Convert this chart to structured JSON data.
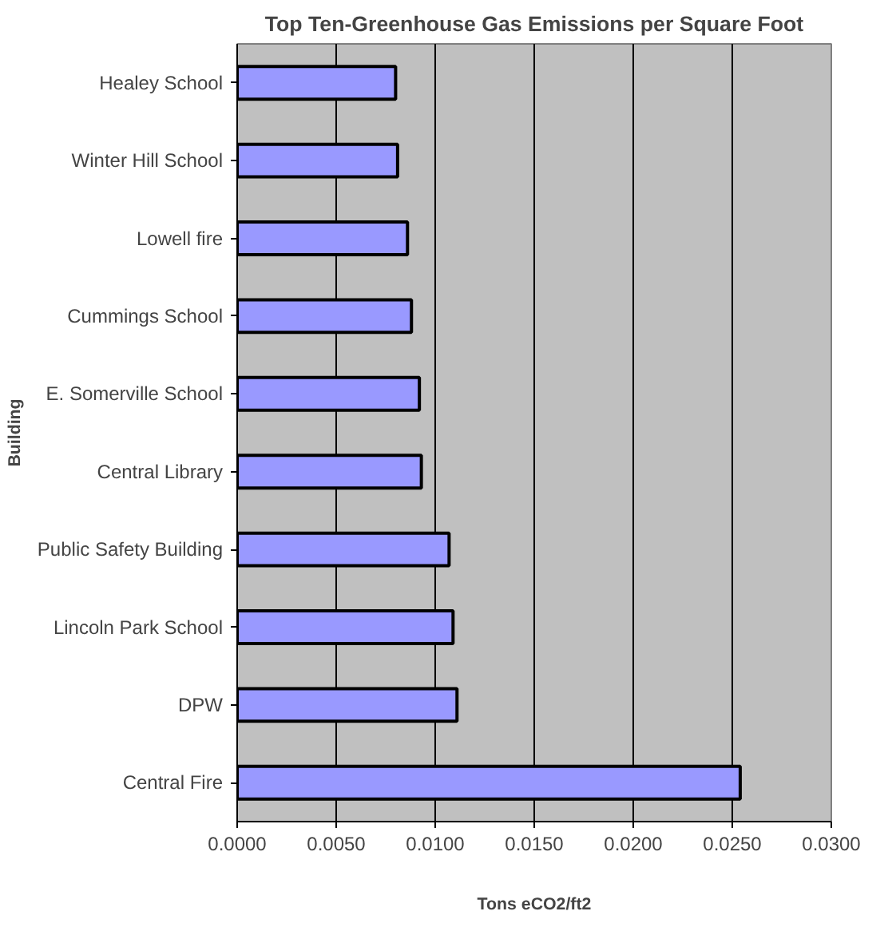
{
  "chart_data": {
    "type": "bar",
    "orientation": "horizontal",
    "title": "Top Ten-Greenhouse Gas Emissions per Square Foot",
    "xlabel": "Tons eCO2/ft2",
    "ylabel": "Building",
    "categories": [
      "Healey School",
      "Winter Hill School",
      "Lowell fire",
      "Cummings School",
      "E. Somerville School",
      "Central Library",
      "Public Safety Building",
      "Lincoln Park School",
      "DPW",
      "Central Fire"
    ],
    "values": [
      0.008,
      0.0081,
      0.0086,
      0.0088,
      0.0092,
      0.0093,
      0.0107,
      0.0109,
      0.0111,
      0.0254
    ],
    "color": "#9999ff",
    "xlim": [
      0,
      0.03
    ],
    "xticks": [
      {
        "value": 0,
        "label": "0.0000"
      },
      {
        "value": 0.005,
        "label": "0.0050"
      },
      {
        "value": 0.01,
        "label": "0.0100"
      },
      {
        "value": 0.015,
        "label": "0.0150"
      },
      {
        "value": 0.02,
        "label": "0.0200"
      },
      {
        "value": 0.025,
        "label": "0.0250"
      },
      {
        "value": 0.03,
        "label": "0.0300"
      }
    ],
    "grid": "x"
  }
}
